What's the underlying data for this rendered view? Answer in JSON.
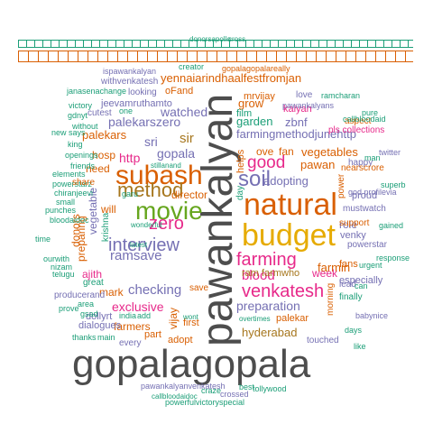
{
  "chart_data": {
    "type": "wordcloud",
    "title": "",
    "xlabel": "",
    "ylabel": "",
    "palette": {
      "dark_gray": "#4d4d4d",
      "teal": "#1b9e77",
      "orange": "#d95f02",
      "purple": "#7570b3",
      "magenta": "#e7298a",
      "green": "#66a61e",
      "gold": "#e6ab02",
      "brown": "#a6761d",
      "gray": "#666666"
    },
    "words": [
      {
        "text": "gopalagopala",
        "size": 5,
        "color": "#4d4d4d"
      },
      {
        "text": "pawankalyan",
        "size": 5,
        "color": "#4d4d4d",
        "rotated": true
      },
      {
        "text": "natural",
        "size": 4,
        "color": "#d95f02"
      },
      {
        "text": "budget",
        "size": 4,
        "color": "#e6ab02"
      },
      {
        "text": "subash",
        "size": 4,
        "color": "#d95f02"
      },
      {
        "text": "movie",
        "size": 4,
        "color": "#66a61e"
      },
      {
        "text": "method",
        "size": 3,
        "color": "#a6761d"
      },
      {
        "text": "zero",
        "size": 3,
        "color": "#e7298a"
      },
      {
        "text": "interview",
        "size": 3,
        "color": "#7570b3"
      },
      {
        "text": "soil",
        "size": 3,
        "color": "#7570b3"
      },
      {
        "text": "farming",
        "size": 3,
        "color": "#e7298a"
      },
      {
        "text": "venkatesh",
        "size": 3,
        "color": "#e7298a"
      },
      {
        "text": "good",
        "size": 3,
        "color": "#e7298a"
      },
      {
        "text": "yennaiarindhaalfestfromjan",
        "size": 2,
        "color": "#d95f02"
      },
      {
        "text": "watched",
        "size": 2,
        "color": "#7570b3"
      },
      {
        "text": "palekarszero",
        "size": 2,
        "color": "#7570b3"
      },
      {
        "text": "farmingmethodjunehttp",
        "size": 2,
        "color": "#7570b3"
      },
      {
        "text": "preparation",
        "size": 2,
        "color": "#7570b3"
      },
      {
        "text": "checking",
        "size": 2,
        "color": "#7570b3"
      },
      {
        "text": "exclusive",
        "size": 2,
        "color": "#e7298a"
      },
      {
        "text": "ramsave",
        "size": 2,
        "color": "#7570b3"
      },
      {
        "text": "adopting",
        "size": 2,
        "color": "#7570b3"
      },
      {
        "text": "garden",
        "size": 2,
        "color": "#1b9e77"
      },
      {
        "text": "hyderabad",
        "size": 2,
        "color": "#a6761d"
      },
      {
        "text": "blood",
        "size": 2,
        "color": "#e7298a"
      },
      {
        "text": "gopala",
        "size": 2,
        "color": "#7570b3"
      },
      {
        "text": "sri",
        "size": 2,
        "color": "#7570b3"
      },
      {
        "text": "sir",
        "size": 2,
        "color": "#a6761d"
      },
      {
        "text": "http",
        "size": 2,
        "color": "#e7298a"
      },
      {
        "text": "palekars",
        "size": 2,
        "color": "#d95f02"
      },
      {
        "text": "zbnf",
        "size": 2,
        "color": "#7570b3"
      },
      {
        "text": "grow",
        "size": 2,
        "color": "#d95f02"
      },
      {
        "text": "pawan",
        "size": 2,
        "color": "#d95f02"
      },
      {
        "text": "vegetables",
        "size": 2,
        "color": "#d95f02"
      },
      {
        "text": "farmin",
        "size": 2,
        "color": "#d95f02"
      },
      {
        "text": "ram",
        "size": 1,
        "color": "#a6761d"
      },
      {
        "text": "farmwho",
        "size": 1,
        "color": "#a6761d"
      },
      {
        "text": "week",
        "size": 1,
        "color": "#e7298a"
      },
      {
        "text": "palekar",
        "size": 1,
        "color": "#d95f02"
      },
      {
        "text": "role",
        "size": 1,
        "color": "#7570b3"
      },
      {
        "text": "mark",
        "size": 1,
        "color": "#d95f02"
      },
      {
        "text": "farmers",
        "size": 1,
        "color": "#d95f02"
      },
      {
        "text": "ajith",
        "size": 1,
        "color": "#e7298a"
      },
      {
        "text": "director",
        "size": 1,
        "color": "#d95f02"
      },
      {
        "text": "need",
        "size": 1,
        "color": "#d95f02"
      },
      {
        "text": "hosp",
        "size": 1,
        "color": "#d95f02"
      },
      {
        "text": "will",
        "size": 1,
        "color": "#d95f02"
      },
      {
        "text": "vijay",
        "size": 1,
        "color": "#d95f02",
        "rotated": true
      },
      {
        "text": "vegetable",
        "size": 1,
        "color": "#7570b3",
        "rotated": true
      },
      {
        "text": "preparing",
        "size": 1,
        "color": "#d95f02",
        "rotated": true
      },
      {
        "text": "donors",
        "size": 1,
        "color": "#d95f02",
        "rotated": true
      },
      {
        "text": "krishna",
        "size": 1,
        "color": "#1b9e77",
        "rotated": true
      },
      {
        "text": "helps",
        "size": 1,
        "color": "#d95f02",
        "rotated": true
      },
      {
        "text": "day",
        "size": 1,
        "color": "#1b9e77",
        "rotated": true
      },
      {
        "text": "power",
        "size": 1,
        "color": "#d95f02",
        "rotated": true
      },
      {
        "text": "morning",
        "size": 1,
        "color": "#d95f02",
        "rotated": true
      },
      {
        "text": "ove",
        "size": 1,
        "color": "#d95f02"
      },
      {
        "text": "fan",
        "size": 1,
        "color": "#d95f02"
      },
      {
        "text": "mrvijay",
        "size": 1,
        "color": "#d95f02"
      },
      {
        "text": "film",
        "size": 1,
        "color": "#1b9e77"
      },
      {
        "text": "kalyan",
        "size": 1,
        "color": "#e7298a"
      },
      {
        "text": "aspect",
        "size": 1,
        "color": "#d95f02"
      },
      {
        "text": "pls collections",
        "size": 1,
        "color": "#e7298a"
      },
      {
        "text": "pawankalyans",
        "size": 1,
        "color": "#7570b3"
      },
      {
        "text": "love",
        "size": 1,
        "color": "#7570b3"
      },
      {
        "text": "mustwatch",
        "size": 1,
        "color": "#7570b3"
      },
      {
        "text": "proud",
        "size": 1,
        "color": "#7570b3"
      },
      {
        "text": "support",
        "size": 1,
        "color": "#d95f02"
      },
      {
        "text": "powerstar",
        "size": 1,
        "color": "#7570b3"
      },
      {
        "text": "venky",
        "size": 1,
        "color": "#7570b3"
      },
      {
        "text": "especially",
        "size": 1,
        "color": "#7570b3"
      },
      {
        "text": "fans",
        "size": 1,
        "color": "#d95f02"
      },
      {
        "text": "finally",
        "size": 1,
        "color": "#1b9e77"
      },
      {
        "text": "touched",
        "size": 1,
        "color": "#7570b3"
      },
      {
        "text": "adopt",
        "size": 1,
        "color": "#d95f02"
      },
      {
        "text": "part",
        "size": 1,
        "color": "#d95f02"
      },
      {
        "text": "every",
        "size": 1,
        "color": "#7570b3"
      },
      {
        "text": "dollyrt",
        "size": 1,
        "color": "#7570b3"
      },
      {
        "text": "dialogues",
        "size": 1,
        "color": "#7570b3"
      },
      {
        "text": "gsad",
        "size": 1,
        "color": "#1b9e77"
      },
      {
        "text": "great",
        "size": 1,
        "color": "#1b9e77"
      },
      {
        "text": "producerand",
        "size": 1,
        "color": "#7570b3"
      },
      {
        "text": "withvenkatesh",
        "size": 1,
        "color": "#7570b3"
      },
      {
        "text": "looking",
        "size": 1,
        "color": "#7570b3"
      },
      {
        "text": "jeevamruthamto",
        "size": 1,
        "color": "#7570b3"
      },
      {
        "text": "oFand",
        "size": 1,
        "color": "#d95f02"
      },
      {
        "text": "first",
        "size": 1,
        "color": "#d95f02"
      },
      {
        "text": "one",
        "size": 1,
        "color": "#1b9e77"
      },
      {
        "text": "cutest",
        "size": 1,
        "color": "#7570b3"
      },
      {
        "text": "creator",
        "size": 1,
        "color": "#1b9e77"
      },
      {
        "text": "ispawankalyan",
        "size": 1,
        "color": "#7570b3"
      },
      {
        "text": "gopalagopalareally",
        "size": 1,
        "color": "#d95f02"
      },
      {
        "text": "janasenachange",
        "size": 1,
        "color": "#1b9e77"
      },
      {
        "text": "powerfulvictoryspecial",
        "size": 1,
        "color": "#1b9e77"
      },
      {
        "text": "pawankalyanvenkatesh",
        "size": 1,
        "color": "#7570b3"
      },
      {
        "text": "tollywood",
        "size": 1,
        "color": "#1b9e77"
      },
      {
        "text": "crossed",
        "size": 1,
        "color": "#7570b3"
      },
      {
        "text": "craze",
        "size": 1,
        "color": "#1b9e77"
      },
      {
        "text": "best",
        "size": 1,
        "color": "#1b9e77"
      },
      {
        "text": "happy",
        "size": 1,
        "color": "#7570b3"
      },
      {
        "text": "twitter",
        "size": 1,
        "color": "#7570b3"
      },
      {
        "text": "superb",
        "size": 1,
        "color": "#1b9e77"
      },
      {
        "text": "gained",
        "size": 1,
        "color": "#1b9e77"
      },
      {
        "text": "urgent",
        "size": 1,
        "color": "#1b9e77"
      },
      {
        "text": "response",
        "size": 1,
        "color": "#1b9e77"
      },
      {
        "text": "lead",
        "size": 1,
        "color": "#7570b3"
      },
      {
        "text": "can",
        "size": 1,
        "color": "#1b9e77"
      },
      {
        "text": "babynice",
        "size": 1,
        "color": "#7570b3"
      },
      {
        "text": "like",
        "size": 1,
        "color": "#1b9e77"
      },
      {
        "text": "days",
        "size": 1,
        "color": "#1b9e77"
      },
      {
        "text": "god profilevia",
        "size": 1,
        "color": "#7570b3"
      },
      {
        "text": "nearscrore",
        "size": 1,
        "color": "#d95f02"
      },
      {
        "text": "man",
        "size": 1,
        "color": "#1b9e77"
      },
      {
        "text": "ramcharan",
        "size": 1,
        "color": "#1b9e77"
      },
      {
        "text": "pure",
        "size": 1,
        "color": "#1b9e77"
      },
      {
        "text": "callbloodaid",
        "size": 1,
        "color": "#1b9e77"
      },
      {
        "text": "chiranjeevi",
        "size": 1,
        "color": "#1b9e77"
      },
      {
        "text": "powerstarz",
        "size": 1,
        "color": "#1b9e77"
      },
      {
        "text": "punches",
        "size": 1,
        "color": "#1b9e77"
      },
      {
        "text": "bloodaidoc",
        "size": 1,
        "color": "#1b9e77"
      },
      {
        "text": "openings",
        "size": 1,
        "color": "#1b9e77"
      },
      {
        "text": "friends",
        "size": 1,
        "color": "#1b9e77"
      },
      {
        "text": "elements",
        "size": 1,
        "color": "#1b9e77"
      },
      {
        "text": "small",
        "size": 1,
        "color": "#1b9e77"
      },
      {
        "text": "share",
        "size": 1,
        "color": "#d95f02"
      },
      {
        "text": "time",
        "size": 1,
        "color": "#1b9e77"
      },
      {
        "text": "victory",
        "size": 1,
        "color": "#1b9e77"
      },
      {
        "text": "gdnyt",
        "size": 1,
        "color": "#1b9e77"
      },
      {
        "text": "without",
        "size": 1,
        "color": "#1b9e77"
      },
      {
        "text": "king",
        "size": 1,
        "color": "#1b9e77"
      },
      {
        "text": "ourwith",
        "size": 1,
        "color": "#1b9e77"
      },
      {
        "text": "nizam",
        "size": 1,
        "color": "#1b9e77"
      },
      {
        "text": "telugu",
        "size": 1,
        "color": "#1b9e77"
      },
      {
        "text": "prove",
        "size": 1,
        "color": "#1b9e77"
      },
      {
        "text": "thanks",
        "size": 1,
        "color": "#1b9e77"
      },
      {
        "text": "main",
        "size": 1,
        "color": "#1b9e77"
      },
      {
        "text": "area",
        "size": 1,
        "color": "#1b9e77"
      },
      {
        "text": "india",
        "size": 1,
        "color": "#1b9e77"
      },
      {
        "text": "add",
        "size": 1,
        "color": "#1b9e77"
      },
      {
        "text": "save",
        "size": 1,
        "color": "#d95f02"
      },
      {
        "text": "garu",
        "size": 1,
        "color": "#1b9e77"
      },
      {
        "text": "new says",
        "size": 1,
        "color": "#1b9e77"
      },
      {
        "text": "donorsapollo",
        "size": 1,
        "color": "#1b9e77"
      },
      {
        "text": "cross",
        "size": 1,
        "color": "#1b9e77"
      },
      {
        "text": "stillanand",
        "size": 1,
        "color": "#1b9e77"
      },
      {
        "text": "wonderful",
        "size": 1,
        "color": "#1b9e77"
      },
      {
        "text": "latest",
        "size": 1,
        "color": "#1b9e77"
      },
      {
        "text": "wont",
        "size": 1,
        "color": "#1b9e77"
      },
      {
        "text": "overtimes",
        "size": 1,
        "color": "#1b9e77"
      },
      {
        "text": "callbloodaidoc",
        "size": 1,
        "color": "#1b9e77"
      }
    ]
  }
}
